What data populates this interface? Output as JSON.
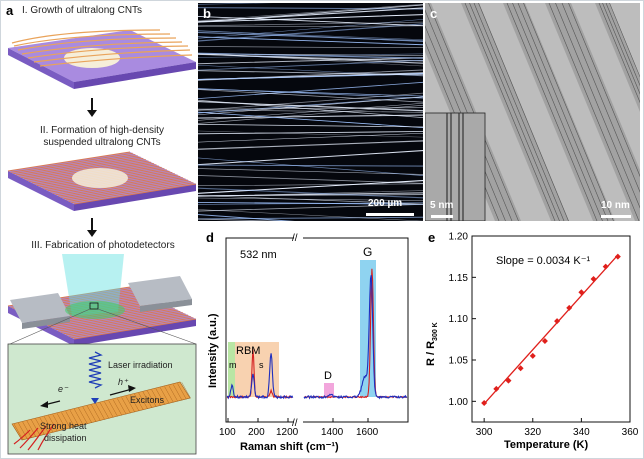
{
  "panel_a": {
    "letter": "a",
    "step1": "I. Growth of ultralong CNTs",
    "step2_line1": "II. Formation of high-density",
    "step2_line2": "suspended ultralong CNTs",
    "step3": "III. Fabrication of photodetectors",
    "inset_laser": "Laser irradiation",
    "inset_electron": "e⁻",
    "inset_hole": "h⁺",
    "inset_excitons": "Excitons",
    "inset_heat_line1": "Strong heat",
    "inset_heat_line2": "dissipation"
  },
  "panel_b": {
    "letter": "b",
    "scalebar": "200 µm"
  },
  "panel_c": {
    "letter": "c",
    "inset_scalebar": "5 nm",
    "scalebar": "10 nm"
  },
  "panel_d": {
    "letter": "d",
    "wavelength": "532 nm",
    "label_RBM": "RBM",
    "label_m": "m",
    "label_s": "s",
    "label_D": "D",
    "label_G": "G",
    "axis_break": "//",
    "chart_data": {
      "type": "line",
      "xlabel": "Raman shift (cm⁻¹)",
      "ylabel": "Intensity (a.u.)",
      "x_ticks_left": [
        "100",
        "200",
        "1200"
      ],
      "x_ticks_right": [
        "1400",
        "1600"
      ],
      "series": [
        {
          "color": "#1e2fbf"
        },
        {
          "color": "#d42020"
        }
      ],
      "highlight_colors": {
        "m": "#b9e6a4",
        "s": "#f8d2b0",
        "D": "#f2a6dc",
        "G": "#8fd3f0"
      }
    }
  },
  "panel_e": {
    "letter": "e",
    "slope_text": "Slope = 0.0034 K⁻¹",
    "chart_data": {
      "type": "scatter",
      "xlabel": "Temperature (K)",
      "ylabel": "R / R",
      "ylabel_sub": "300 K",
      "xlim": [
        295,
        360
      ],
      "ylim": [
        0.975,
        1.2
      ],
      "x_ticks": [
        300,
        320,
        340,
        360
      ],
      "y_ticks": [
        1.0,
        1.05,
        1.1,
        1.15,
        1.2
      ],
      "x": [
        300,
        305,
        310,
        315,
        320,
        325,
        330,
        335,
        340,
        345,
        350,
        355
      ],
      "y": [
        0.998,
        1.015,
        1.025,
        1.04,
        1.055,
        1.073,
        1.097,
        1.113,
        1.132,
        1.148,
        1.163,
        1.175
      ],
      "fit_line": {
        "x": [
          300,
          355
        ],
        "y": [
          0.997,
          1.177
        ]
      },
      "color": "#e0201c"
    }
  }
}
